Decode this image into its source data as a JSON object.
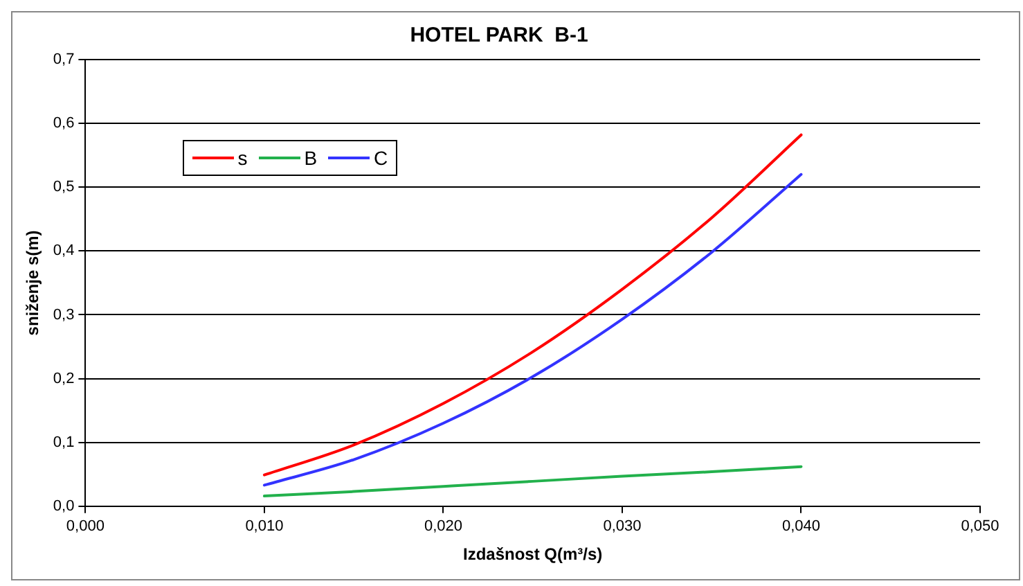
{
  "chart_data": {
    "type": "line",
    "title": "HOTEL PARK  B-1",
    "xlabel": "Izdašnost Q(m³/s)",
    "ylabel": "sniženje s(m)",
    "x": [
      0.01,
      0.015,
      0.02,
      0.025,
      0.03,
      0.035,
      0.04
    ],
    "series": [
      {
        "name": "s",
        "color": "#ff0000",
        "values": [
          0.049,
          0.096,
          0.161,
          0.242,
          0.34,
          0.452,
          0.582
        ]
      },
      {
        "name": "B",
        "color": "#22b14c",
        "values": [
          0.016,
          0.023,
          0.031,
          0.039,
          0.047,
          0.054,
          0.062
        ]
      },
      {
        "name": "C",
        "color": "#3333ff",
        "values": [
          0.033,
          0.073,
          0.13,
          0.203,
          0.293,
          0.398,
          0.52
        ]
      }
    ],
    "xlim": [
      0,
      0.05
    ],
    "xticks": [
      {
        "value": 0,
        "label": "0,000"
      },
      {
        "value": 0.01,
        "label": "0,010"
      },
      {
        "value": 0.02,
        "label": "0,020"
      },
      {
        "value": 0.03,
        "label": "0,030"
      },
      {
        "value": 0.04,
        "label": "0,040"
      },
      {
        "value": 0.05,
        "label": "0,050"
      }
    ],
    "ylim": [
      0,
      0.7
    ],
    "yticks": [
      {
        "value": 0,
        "label": "0,0"
      },
      {
        "value": 0.1,
        "label": "0,1"
      },
      {
        "value": 0.2,
        "label": "0,2"
      },
      {
        "value": 0.3,
        "label": "0,3"
      },
      {
        "value": 0.4,
        "label": "0,4"
      },
      {
        "value": 0.5,
        "label": "0,5"
      },
      {
        "value": 0.6,
        "label": "0,6"
      },
      {
        "value": 0.7,
        "label": "0,7"
      }
    ],
    "grid": "y",
    "legend": "top left",
    "marker": "none",
    "line_style": "solid"
  }
}
